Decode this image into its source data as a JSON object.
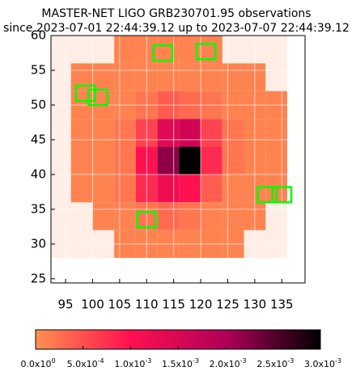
{
  "chart_data": {
    "type": "heatmap",
    "title": "MASTER-NET LIGO GRB230701.95 observations",
    "subtitle": "since 2023-07-01 22:44:39.12 up to 2023-07-07 22:44:39.12",
    "x": [
      94,
      98,
      102,
      106,
      110,
      114,
      118,
      122,
      126,
      130,
      134
    ],
    "y": [
      58,
      54,
      50,
      46,
      42,
      38,
      34,
      30
    ],
    "cell_size": [
      4,
      4
    ],
    "values": [
      [
        0,
        0,
        0,
        0.0001,
        0.0001,
        0.0001,
        0.0001,
        0.0001,
        0,
        0,
        0
      ],
      [
        0,
        0.0001,
        0.0001,
        0.0001,
        0.0001,
        0.0001,
        0.0001,
        0.0001,
        0.0001,
        0.0001,
        0
      ],
      [
        0,
        0.0001,
        0.0001,
        0.0001,
        0.0002,
        0.0004,
        0.0003,
        0.0002,
        0.0001,
        0.0001,
        0.0001
      ],
      [
        0,
        0.0001,
        0.0001,
        0.0002,
        0.0006,
        0.0014,
        0.0016,
        0.0006,
        0.0002,
        0.0001,
        0.0001
      ],
      [
        0,
        0.0001,
        0.0001,
        0.0002,
        0.001,
        0.0022,
        0.003,
        0.0008,
        0.0002,
        0.0001,
        0.0001
      ],
      [
        0,
        0.0001,
        0.0001,
        0.0002,
        0.0008,
        0.0012,
        0.001,
        0.0004,
        0.0001,
        0.0001,
        0.0001
      ],
      [
        0,
        0,
        0.0001,
        0.0001,
        0.0002,
        0.0003,
        0.0002,
        0.0001,
        0.0001,
        0.0001,
        0
      ],
      [
        0,
        0,
        0,
        0.0001,
        0.0001,
        0.0001,
        0.0001,
        0.0001,
        0.0001,
        0,
        0
      ]
    ],
    "fields": [
      [
        113,
        57.5
      ],
      [
        121,
        57.7
      ],
      [
        98.7,
        51.7
      ],
      [
        101,
        51.1
      ],
      [
        132.3,
        37.1
      ],
      [
        135,
        37.1
      ],
      [
        110,
        33.5
      ]
    ],
    "field_size": [
      3.5,
      2.2
    ],
    "field_color": "#00ff00",
    "colormap": [
      "#ff9050",
      "#ff1050",
      "#b00058",
      "#000000"
    ],
    "xlim": [
      92.3,
      139.3
    ],
    "ylim": [
      24.4,
      60
    ],
    "xticks": [
      95,
      100,
      105,
      110,
      115,
      120,
      125,
      130,
      135
    ],
    "yticks": [
      25,
      30,
      35,
      40,
      45,
      50,
      55,
      60
    ],
    "grid": true,
    "clim": [
      0,
      0.003
    ],
    "cticks": [
      {
        "value": 0,
        "label": "0.0x10",
        "exp": "0"
      },
      {
        "value": 0.0005,
        "label": "5.0x10",
        "exp": "-4"
      },
      {
        "value": 0.001,
        "label": "1.0x10",
        "exp": "-3"
      },
      {
        "value": 0.0015,
        "label": "1.5x10",
        "exp": "-3"
      },
      {
        "value": 0.002,
        "label": "2.0x10",
        "exp": "-3"
      },
      {
        "value": 0.0025,
        "label": "2.5x10",
        "exp": "-3"
      },
      {
        "value": 0.003,
        "label": "3.0x10",
        "exp": "-3"
      }
    ]
  }
}
